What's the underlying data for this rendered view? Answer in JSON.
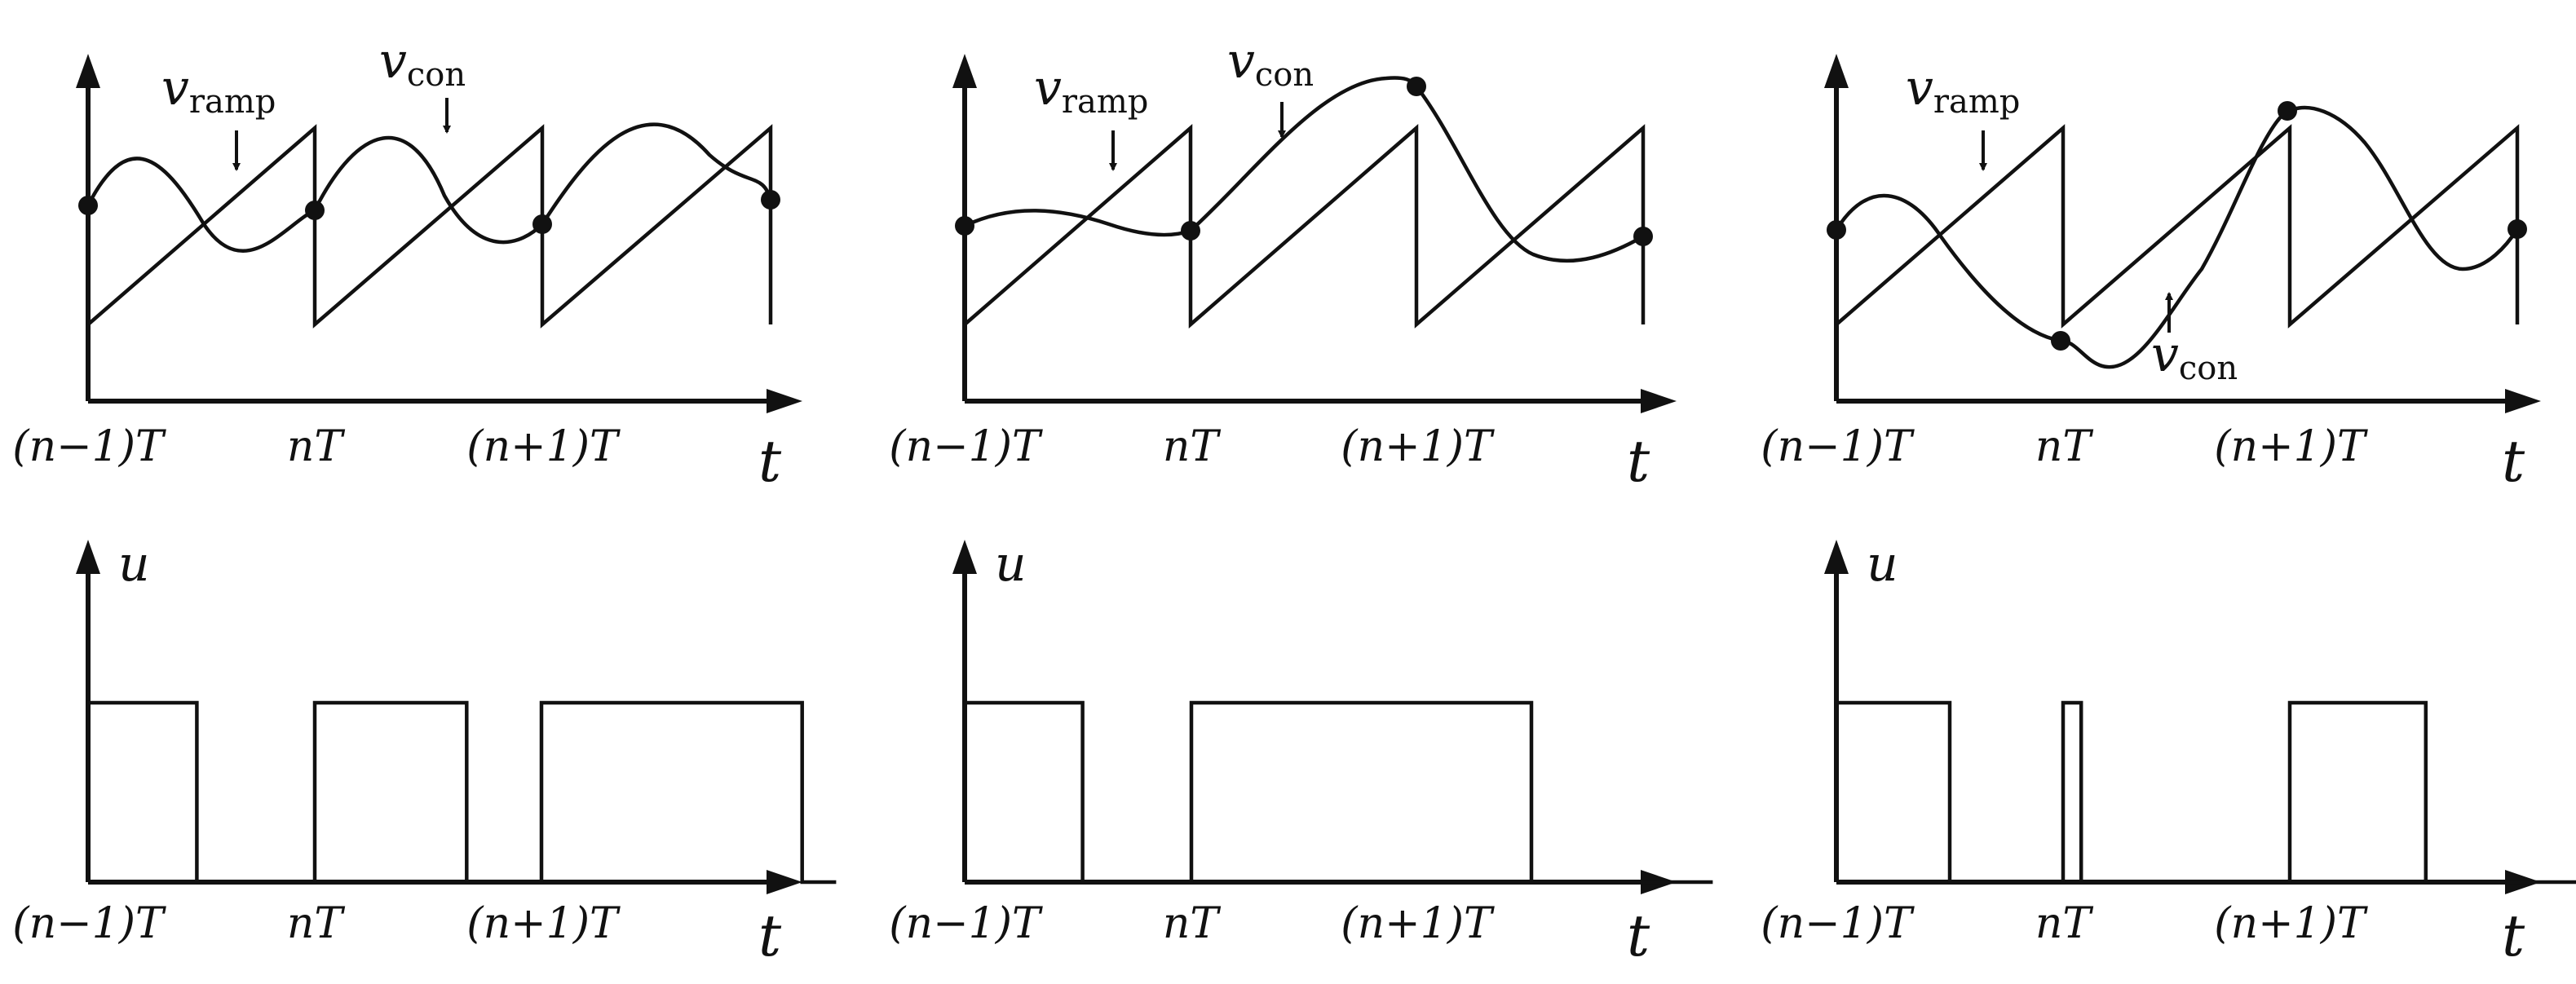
{
  "figure": {
    "tick_labels": [
      "(n−1)T",
      "nT",
      "(n+1)T"
    ],
    "time_label": "t",
    "output_label": "u",
    "ramp_label": {
      "main": "v",
      "sub": "ramp"
    },
    "control_label": {
      "main": "v",
      "sub": "con"
    },
    "stroke_color": "#111111"
  },
  "panels": [
    {
      "id": "left",
      "output_on": [
        [
          0.0,
          0.48
        ],
        [
          1.0,
          1.67
        ],
        [
          2.0,
          3.15
        ]
      ]
    },
    {
      "id": "middle",
      "output_on": [
        [
          0.0,
          0.52
        ],
        [
          1.0,
          2.5
        ]
      ]
    },
    {
      "id": "right",
      "output_on": [
        [
          0.0,
          0.5
        ],
        [
          1.0,
          1.08
        ],
        [
          2.0,
          2.6
        ]
      ]
    }
  ]
}
